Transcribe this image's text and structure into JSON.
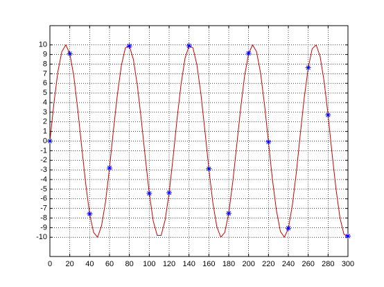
{
  "chart_data": {
    "type": "line",
    "xlim": [
      0,
      300
    ],
    "ylim": [
      -12,
      12
    ],
    "xticks": [
      0,
      20,
      40,
      60,
      80,
      100,
      120,
      140,
      160,
      180,
      200,
      220,
      240,
      260,
      280,
      300
    ],
    "yticks": [
      -10,
      -9,
      -8,
      -7,
      -6,
      -5,
      -4,
      -3,
      -2,
      -1,
      0,
      1,
      2,
      3,
      4,
      5,
      6,
      7,
      8,
      9,
      10
    ],
    "grid": true,
    "series": [
      {
        "color": "#cc0000",
        "marker": "none",
        "x": [
          0,
          4,
          8,
          12,
          16,
          20,
          24,
          28,
          32,
          36,
          40,
          44,
          48,
          52,
          56,
          60,
          64,
          68,
          72,
          76,
          80,
          84,
          88,
          92,
          96,
          100,
          104,
          108,
          112,
          116,
          120,
          124,
          128,
          132,
          136,
          140,
          144,
          148,
          152,
          156,
          160,
          164,
          168,
          172,
          176,
          180,
          184,
          188,
          192,
          196,
          200,
          204,
          208,
          212,
          216,
          220,
          224,
          228,
          232,
          236,
          240,
          244,
          248,
          252,
          256,
          260,
          264,
          268,
          272,
          276,
          280,
          284,
          288,
          292,
          296,
          300
        ],
        "values": [
          0,
          3.9,
          7.2,
          9.3,
          10.0,
          9.1,
          6.8,
          3.3,
          -0.6,
          -4.4,
          -7.6,
          -9.5,
          -10.0,
          -8.8,
          -6.3,
          -2.8,
          1.2,
          4.9,
          7.9,
          9.7,
          9.9,
          8.5,
          5.8,
          2.2,
          -1.7,
          -5.4,
          -8.3,
          -9.8,
          -9.8,
          -8.2,
          -5.4,
          -1.7,
          2.3,
          5.9,
          8.6,
          9.9,
          9.7,
          7.9,
          4.9,
          1.1,
          -2.9,
          -6.4,
          -8.9,
          -10.0,
          -9.5,
          -7.5,
          -4.3,
          -0.5,
          3.4,
          6.8,
          9.1,
          10.0,
          9.3,
          7.1,
          3.8,
          -0.1,
          -4.0,
          -7.2,
          -9.4,
          -10.0,
          -9.1,
          -6.7,
          -3.3,
          0.7,
          4.5,
          7.6,
          9.6,
          10.0,
          8.8,
          6.2,
          2.7,
          -1.3,
          -5.0,
          -8.0,
          -9.7,
          -9.9
        ]
      },
      {
        "color": "#0000ff",
        "marker": "asterisk",
        "x": [
          0,
          20,
          40,
          60,
          80,
          100,
          120,
          140,
          160,
          180,
          200,
          220,
          240,
          260,
          280,
          300
        ],
        "values": [
          0,
          9.09,
          -7.57,
          -2.79,
          9.89,
          -5.44,
          -5.37,
          9.91,
          -2.88,
          -7.51,
          9.13,
          -0.09,
          -9.06,
          7.63,
          2.71,
          -9.88
        ]
      }
    ]
  }
}
